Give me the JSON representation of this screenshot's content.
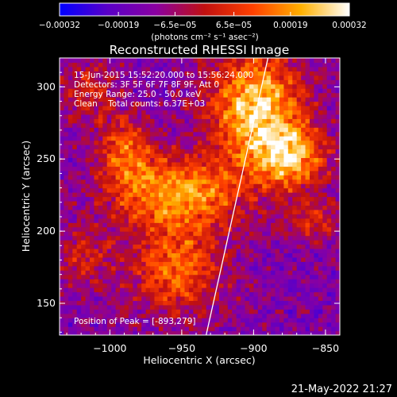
{
  "chart_data": {
    "type": "heatmap",
    "title": "Reconstructed RHESSI Image",
    "xlabel": "Heliocentric X (arcsec)",
    "ylabel": "Heliocentric Y (arcsec)",
    "xlim": [
      -1035,
      -840
    ],
    "ylim": [
      128,
      320
    ],
    "x_ticks": [
      -1000,
      -950,
      -900,
      -850
    ],
    "x_tick_labels": [
      "−1000",
      "−950",
      "−900",
      "−850"
    ],
    "y_ticks": [
      150,
      200,
      250,
      300
    ],
    "y_tick_labels": [
      "150",
      "200",
      "250",
      "300"
    ],
    "colorbar": {
      "range": [
        -0.00032,
        0.00032
      ],
      "ticks": [
        -0.00032,
        -0.00019,
        -6.5e-05,
        6.5e-05,
        0.00019,
        0.00032
      ],
      "tick_labels": [
        "−0.00032",
        "−0.00019",
        "−6.5e−05",
        "6.5e−05",
        "0.00019",
        "0.00032"
      ],
      "unit_label": "(photons cm⁻² s⁻¹ asec⁻²)",
      "colors": [
        "#0000ff",
        "#5a00c8",
        "#8a00a0",
        "#c01010",
        "#ff4000",
        "#ffb000",
        "#ffffff"
      ]
    },
    "annotations": [
      "15-Jun-2015 15:52:20.000 to 15:56:24.000",
      "Detectors: 3F 5F 6F 7F 8F 9F, Att 0",
      "Energy Range: 25.0 - 50.0 keV",
      "Clean    Total counts: 6.37E+03"
    ],
    "peak_label": "Position of Peak = [-893,279]",
    "peak": [
      -893,
      279
    ],
    "limb_line": [
      [
        -933,
        128
      ],
      [
        -890,
        320
      ]
    ],
    "blobs": [
      {
        "x": -900,
        "y": 285,
        "sx": 32,
        "sy": 40,
        "a": 1.0
      },
      {
        "x": -875,
        "y": 250,
        "sx": 25,
        "sy": 22,
        "a": 0.8
      },
      {
        "x": -955,
        "y": 225,
        "sx": 45,
        "sy": 25,
        "a": 0.85
      },
      {
        "x": -990,
        "y": 255,
        "sx": 18,
        "sy": 22,
        "a": 0.6
      },
      {
        "x": -955,
        "y": 172,
        "sx": 32,
        "sy": 30,
        "a": 0.65
      },
      {
        "x": -1020,
        "y": 180,
        "sx": 20,
        "sy": 22,
        "a": 0.35
      },
      {
        "x": -1015,
        "y": 295,
        "sx": 20,
        "sy": 25,
        "a": 0.35
      },
      {
        "x": -860,
        "y": 205,
        "sx": 20,
        "sy": 15,
        "a": 0.4
      }
    ]
  },
  "footer": {
    "timestamp": "21-May-2022 21:27"
  }
}
